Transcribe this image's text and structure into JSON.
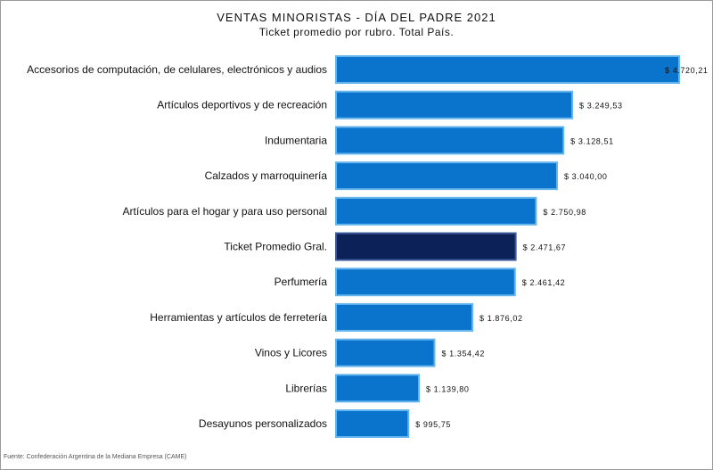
{
  "chart_data": {
    "type": "bar",
    "orientation": "horizontal",
    "title": "VENTAS MINORISTAS - DÍA DEL PADRE 2021",
    "subtitle": "Ticket promedio por rubro. Total País.",
    "categories": [
      "Accesorios de computación, de celulares, electrónicos y audios",
      "Artículos deportivos y de recreación",
      "Indumentaria",
      "Calzados y marroquinería",
      "Artículos para el hogar y para uso personal",
      "Ticket Promedio Gral.",
      "Perfumería",
      "Herramientas y artículos de ferretería",
      "Vinos y Licores",
      "Librerías",
      "Desayunos personalizados"
    ],
    "values": [
      4720.21,
      3249.53,
      3128.51,
      3040.0,
      2750.98,
      2471.67,
      2461.42,
      1876.02,
      1354.42,
      1139.8,
      995.75
    ],
    "value_labels": [
      "$ 4.720,21",
      "$ 3.249,53",
      "$ 3.128,51",
      "$ 3.040,00",
      "$ 2.750,98",
      "$ 2.471,67",
      "$ 2.461,42",
      "$ 1.876,02",
      "$ 1.354,42",
      "$ 1.139,80",
      "$ 995,75"
    ],
    "highlight_index": 5,
    "xlim": [
      0,
      4720.21
    ],
    "grid": false,
    "legend": "none",
    "xlabel": "",
    "ylabel": ""
  },
  "colors": {
    "bar": "#0a73cb",
    "bar_border": "#64b4ee",
    "highlight": "#0c2157",
    "highlight_border": "#3a5a9a",
    "text": "#111111"
  },
  "source": "Fuente: Confederación Argentina de la Mediana Empresa (CAME)"
}
